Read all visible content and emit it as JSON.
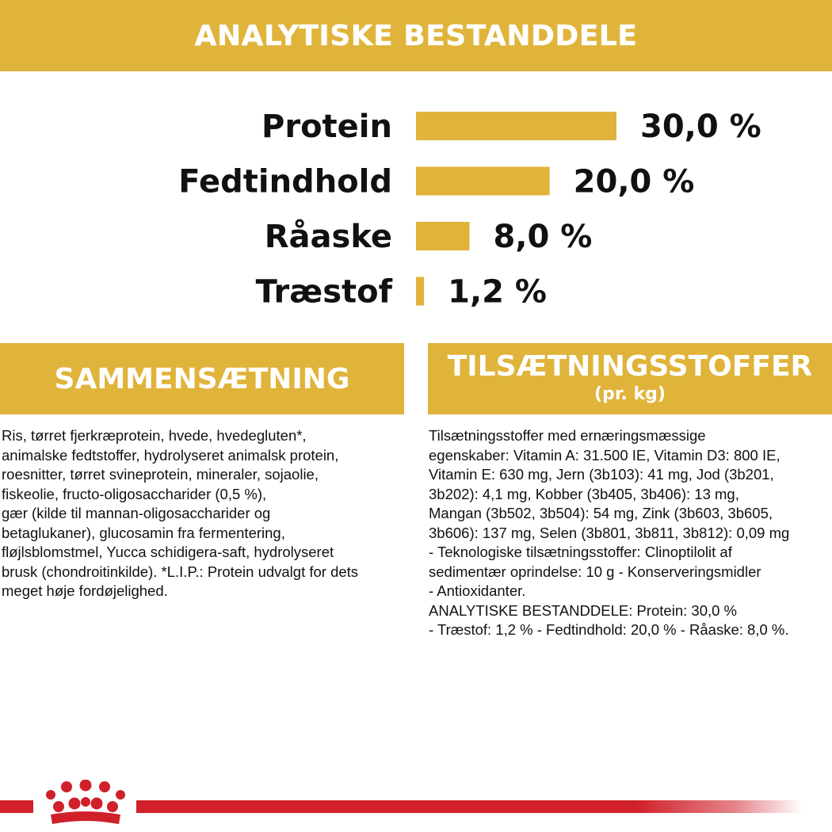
{
  "header": {
    "title": "ANALYTISKE BESTANDDELE"
  },
  "chart_data": {
    "type": "bar",
    "orientation": "horizontal",
    "categories": [
      "Protein",
      "Fedtindhold",
      "Råaske",
      "Træstof"
    ],
    "values": [
      30.0,
      20.0,
      8.0,
      1.2
    ],
    "value_labels": [
      "30,0 %",
      "20,0 %",
      "8,0 %",
      "1,2 %"
    ],
    "unit": "%",
    "bar_color": "#E0B33A",
    "grid": false,
    "legend": "none"
  },
  "composition": {
    "title": "SAMMENSÆTNING",
    "text": "Ris, tørret fjerkræprotein, hvede, hvedegluten*,\nanimalske fedtstoffer, hydrolyseret animalsk protein,\nroesnitter, tørret svineprotein, mineraler, sojaolie,\nfiskeolie, fructo-oligosaccharider (0,5 %),\ngær (kilde til mannan-oligosaccharider og\nbetaglukaner), glucosamin fra fermentering,\nfløjlsblomstmel, Yucca schidigera-saft, hydrolyseret\nbrusk (chondroitinkilde). *L.I.P.: Protein udvalgt for dets\nmeget høje fordøjelighed."
  },
  "additives": {
    "title": "TILSÆTNINGSSTOFFER",
    "subtitle": "(pr. kg)",
    "text": "Tilsætningsstoffer med ernæringsmæssige\negenskaber: Vitamin A: 31.500 IE, Vitamin D3: 800 IE,\nVitamin E: 630 mg, Jern (3b103): 41 mg, Jod (3b201,\n3b202): 4,1 mg, Kobber (3b405, 3b406): 13 mg,\nMangan (3b502, 3b504): 54 mg, Zink (3b603, 3b605,\n3b606): 137 mg, Selen (3b801, 3b811, 3b812): 0,09 mg\n- Teknologiske tilsætningsstoffer: Clinoptilolit af\nsedimentær oprindelse: 10 g - Konserveringsmidler\n- Antioxidanter.\nANALYTISKE BESTANDDELE: Protein: 30,0 %\n- Træstof: 1,2 % - Fedtindhold: 20,0 % - Råaske: 8,0 %."
  },
  "colors": {
    "accent": "#E0B33A",
    "brand_red": "#D0202A"
  },
  "icons": {
    "brand": "crown-icon"
  }
}
